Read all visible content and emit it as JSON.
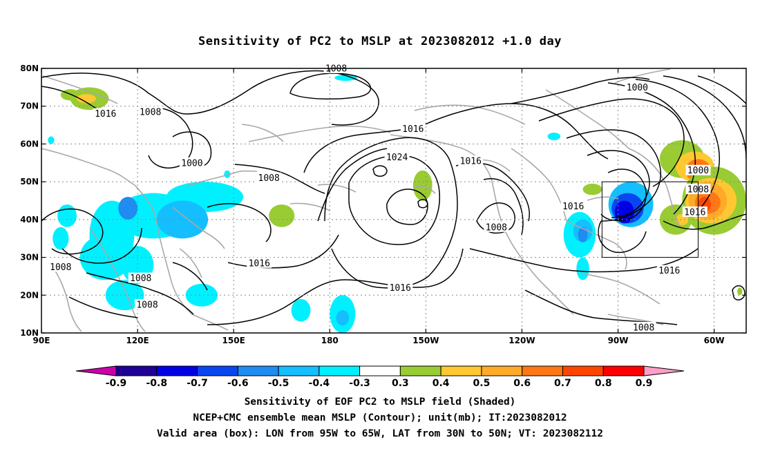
{
  "title": "Sensitivity of PC2 to MSLP at 2023082012 +1.0 day",
  "chart_data": {
    "type": "map",
    "lon_range": [
      90,
      310
    ],
    "lat_range": [
      10,
      80
    ],
    "lat_ticks": [
      {
        "lat": 80,
        "label": "80N"
      },
      {
        "lat": 70,
        "label": "70N"
      },
      {
        "lat": 60,
        "label": "60N"
      },
      {
        "lat": 50,
        "label": "50N"
      },
      {
        "lat": 40,
        "label": "40N"
      },
      {
        "lat": 30,
        "label": "30N"
      },
      {
        "lat": 20,
        "label": "20N"
      },
      {
        "lat": 10,
        "label": "10N"
      }
    ],
    "lon_ticks": [
      {
        "lon": 90,
        "label": "90E"
      },
      {
        "lon": 120,
        "label": "120E"
      },
      {
        "lon": 150,
        "label": "150E"
      },
      {
        "lon": 180,
        "label": "180"
      },
      {
        "lon": 210,
        "label": "150W"
      },
      {
        "lon": 240,
        "label": "120W"
      },
      {
        "lon": 270,
        "label": "90W"
      },
      {
        "lon": 300,
        "label": "60W"
      }
    ],
    "grid": true,
    "box": {
      "lon_min": 265,
      "lon_max": 295,
      "lat_min": 30,
      "lat_max": 50
    },
    "contour_labels": [
      {
        "lon": 182,
        "lat": 80,
        "text": "1008"
      },
      {
        "lon": 110,
        "lat": 68,
        "text": "1016"
      },
      {
        "lon": 124,
        "lat": 68.5,
        "text": "1008"
      },
      {
        "lon": 137,
        "lat": 55,
        "text": "1000"
      },
      {
        "lon": 161,
        "lat": 51,
        "text": "1008"
      },
      {
        "lon": 206,
        "lat": 64,
        "text": "1016"
      },
      {
        "lon": 201,
        "lat": 56.5,
        "text": "1024"
      },
      {
        "lon": 224,
        "lat": 55.5,
        "text": "1016"
      },
      {
        "lon": 276,
        "lat": 75,
        "text": "1000"
      },
      {
        "lon": 295,
        "lat": 53,
        "text": "1000"
      },
      {
        "lon": 295,
        "lat": 48,
        "text": "1008"
      },
      {
        "lon": 294,
        "lat": 42,
        "text": "1016"
      },
      {
        "lon": 256,
        "lat": 43.5,
        "text": "1016"
      },
      {
        "lon": 232,
        "lat": 38,
        "text": "1008"
      },
      {
        "lon": 158,
        "lat": 28.5,
        "text": "1016"
      },
      {
        "lon": 96,
        "lat": 27.5,
        "text": "1008"
      },
      {
        "lon": 121,
        "lat": 24.5,
        "text": "1008"
      },
      {
        "lon": 123,
        "lat": 17.5,
        "text": "1008"
      },
      {
        "lon": 202,
        "lat": 22,
        "text": "1016"
      },
      {
        "lon": 286,
        "lat": 26.5,
        "text": "1016"
      },
      {
        "lon": 278,
        "lat": 11.5,
        "text": "1008"
      }
    ],
    "colorbar": {
      "colors": [
        "#cc00aa",
        "#1e0096",
        "#0000e6",
        "#0a46f0",
        "#1e8cf0",
        "#14beff",
        "#00f0ff",
        "#ffffff",
        "#99cc33",
        "#ffc832",
        "#ffaa28",
        "#ff7814",
        "#ff4600",
        "#ff0000",
        "#ff9ec8"
      ],
      "labels": [
        "-0.9",
        "-0.8",
        "-0.7",
        "-0.6",
        "-0.5",
        "-0.4",
        "-0.3",
        "0.3",
        "0.4",
        "0.5",
        "0.6",
        "0.7",
        "0.8",
        "0.9"
      ]
    },
    "shaded_blobs": [
      {
        "lon": 112,
        "lat": 36,
        "rx": 7,
        "ry": 9,
        "color": "#00f0ff"
      },
      {
        "lon": 125,
        "lat": 41,
        "rx": 12,
        "ry": 6,
        "color": "#00f0ff"
      },
      {
        "lon": 141,
        "lat": 46,
        "rx": 12,
        "ry": 4,
        "color": "#00f0ff"
      },
      {
        "lon": 134,
        "lat": 40,
        "rx": 8,
        "ry": 5,
        "color": "#14beff"
      },
      {
        "lon": 117,
        "lat": 43,
        "rx": 3,
        "ry": 3,
        "color": "#1e8cf0"
      },
      {
        "lon": 110,
        "lat": 30,
        "rx": 8,
        "ry": 6,
        "color": "#00f0ff"
      },
      {
        "lon": 120,
        "lat": 28,
        "rx": 5,
        "ry": 5,
        "color": "#00f0ff"
      },
      {
        "lon": 116,
        "lat": 20,
        "rx": 6,
        "ry": 4,
        "color": "#00f0ff"
      },
      {
        "lon": 98,
        "lat": 41,
        "rx": 3,
        "ry": 3,
        "color": "#00f0ff"
      },
      {
        "lon": 96,
        "lat": 35,
        "rx": 2.5,
        "ry": 3,
        "color": "#00f0ff"
      },
      {
        "lon": 140,
        "lat": 20,
        "rx": 5,
        "ry": 3,
        "color": "#00f0ff"
      },
      {
        "lon": 171,
        "lat": 16,
        "rx": 3,
        "ry": 3,
        "color": "#00f0ff"
      },
      {
        "lon": 184,
        "lat": 15,
        "rx": 4,
        "ry": 5,
        "color": "#00f0ff"
      },
      {
        "lon": 184,
        "lat": 14,
        "rx": 2,
        "ry": 2,
        "color": "#14beff"
      },
      {
        "lon": 185,
        "lat": 77.5,
        "rx": 3.5,
        "ry": 0.8,
        "color": "#00f0ff"
      },
      {
        "lon": 93,
        "lat": 61,
        "rx": 1,
        "ry": 1,
        "color": "#00f0ff"
      },
      {
        "lon": 148,
        "lat": 52,
        "rx": 1,
        "ry": 1,
        "color": "#00f0ff"
      },
      {
        "lon": 258,
        "lat": 36,
        "rx": 5,
        "ry": 6,
        "color": "#00f0ff"
      },
      {
        "lon": 259,
        "lat": 37,
        "rx": 3,
        "ry": 3,
        "color": "#14beff"
      },
      {
        "lon": 259,
        "lat": 36,
        "rx": 1.5,
        "ry": 2,
        "color": "#1e8cf0"
      },
      {
        "lon": 259,
        "lat": 27,
        "rx": 2,
        "ry": 3,
        "color": "#00f0ff"
      },
      {
        "lon": 274,
        "lat": 44,
        "rx": 7,
        "ry": 6,
        "color": "#14beff"
      },
      {
        "lon": 273,
        "lat": 43,
        "rx": 5,
        "ry": 4,
        "color": "#0a46f0"
      },
      {
        "lon": 272,
        "lat": 42,
        "rx": 3,
        "ry": 3,
        "color": "#0000e6"
      },
      {
        "lon": 262,
        "lat": 48,
        "rx": 3,
        "ry": 1.5,
        "color": "#99cc33"
      },
      {
        "lon": 209,
        "lat": 49,
        "rx": 3,
        "ry": 4,
        "color": "#99cc33"
      },
      {
        "lon": 165,
        "lat": 41,
        "rx": 4,
        "ry": 3,
        "color": "#99cc33"
      },
      {
        "lon": 105,
        "lat": 72,
        "rx": 6,
        "ry": 3,
        "color": "#99cc33"
      },
      {
        "lon": 99,
        "lat": 73,
        "rx": 3,
        "ry": 1.5,
        "color": "#99cc33"
      },
      {
        "lon": 104,
        "lat": 72,
        "rx": 3,
        "ry": 1.2,
        "color": "#ffc832"
      },
      {
        "lon": 250,
        "lat": 62,
        "rx": 2,
        "ry": 1,
        "color": "#00f0ff"
      },
      {
        "lon": 290,
        "lat": 56,
        "rx": 7,
        "ry": 5,
        "color": "#99cc33"
      },
      {
        "lon": 294,
        "lat": 54,
        "rx": 6,
        "ry": 4,
        "color": "#ffc832"
      },
      {
        "lon": 295,
        "lat": 53,
        "rx": 4,
        "ry": 3,
        "color": "#ff7814"
      },
      {
        "lon": 300,
        "lat": 45,
        "rx": 10,
        "ry": 9,
        "color": "#99cc33"
      },
      {
        "lon": 299,
        "lat": 45,
        "rx": 8,
        "ry": 6,
        "color": "#ffc832"
      },
      {
        "lon": 298,
        "lat": 45,
        "rx": 6,
        "ry": 5,
        "color": "#ffaa28"
      },
      {
        "lon": 298,
        "lat": 44.5,
        "rx": 4,
        "ry": 3,
        "color": "#ff7814"
      },
      {
        "lon": 297,
        "lat": 44,
        "rx": 2,
        "ry": 2,
        "color": "#ff4600"
      },
      {
        "lon": 288,
        "lat": 40,
        "rx": 5,
        "ry": 4,
        "color": "#99cc33"
      },
      {
        "lon": 290,
        "lat": 40,
        "rx": 2,
        "ry": 1.5,
        "color": "#ffc832"
      },
      {
        "lon": 308,
        "lat": 21,
        "rx": 0.8,
        "ry": 1,
        "color": "#99cc33"
      }
    ]
  },
  "captions": {
    "line1": "Sensitivity of EOF PC2 to MSLP field (Shaded)",
    "line2": "NCEP+CMC ensemble mean MSLP (Contour); unit(mb); IT:2023082012",
    "line3": "Valid area (box): LON from 95W to 65W, LAT from 30N to 50N; VT: 2023082112"
  }
}
